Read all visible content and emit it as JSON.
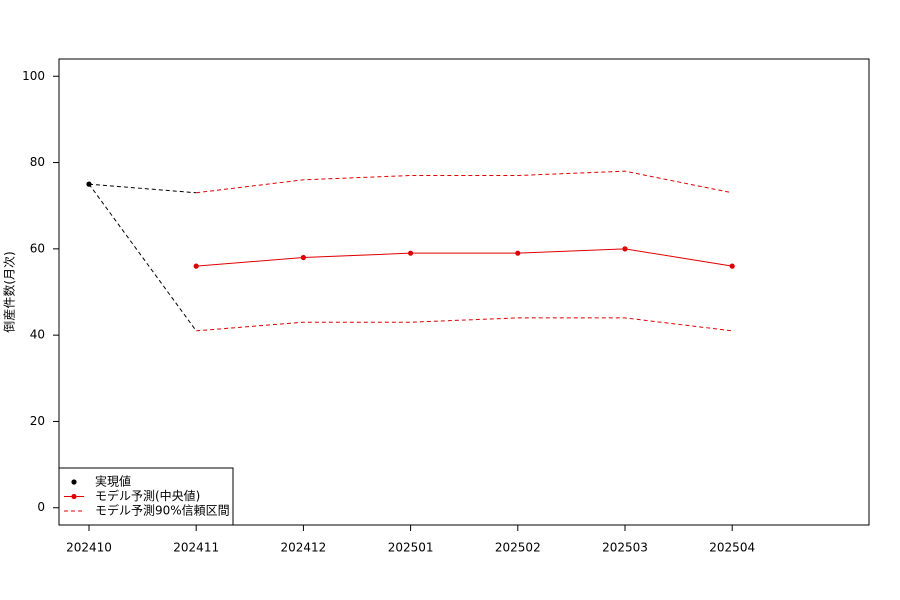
{
  "chart_data": {
    "type": "line",
    "y_label": "倒産件数(月次)",
    "categories": [
      "202410",
      "202411",
      "202412",
      "202501",
      "202502",
      "202503",
      "202504"
    ],
    "series": [
      {
        "name": "実現値",
        "color": "#000000",
        "style": "points",
        "values": [
          75,
          null,
          null,
          null,
          null,
          null,
          null
        ]
      },
      {
        "name": "モデル予測(中央値)",
        "color": "#e00000",
        "style": "line-points",
        "values": [
          null,
          56,
          58,
          59,
          59,
          60,
          56
        ]
      },
      {
        "name": "モデル予測90%信頼区間",
        "color": "#e00000",
        "style": "dashed",
        "lower": [
          null,
          41,
          43,
          43,
          44,
          44,
          41
        ],
        "upper": [
          null,
          73,
          76,
          77,
          77,
          78,
          73
        ]
      }
    ],
    "ylim": [
      -4,
      104
    ],
    "yticks": [
      0,
      20,
      40,
      60,
      80,
      100
    ],
    "legend": "bottom-left"
  }
}
